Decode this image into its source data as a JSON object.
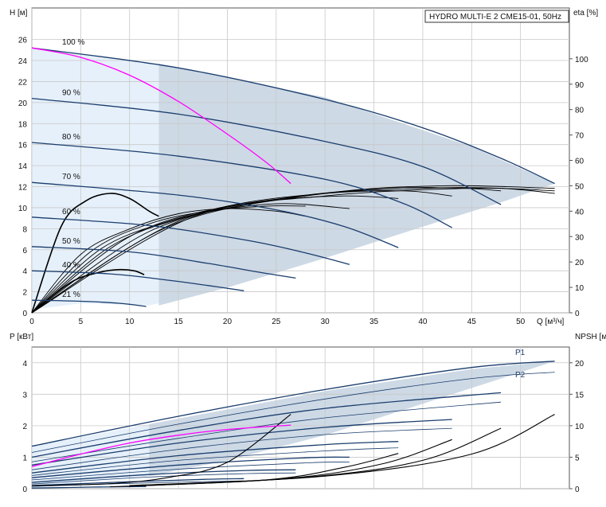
{
  "title": "HYDRO MULTI-E 2 CME15-01, 50Hz",
  "colors": {
    "envelope": "#cdd9e5",
    "envelope_light": "#e6f0fa",
    "speed_curve": "#1a3d6d",
    "duty_curve": "#ff00ff",
    "eta_curve": "#000000",
    "grid": "#c8c8c8",
    "frame": "#555555"
  },
  "chart_data": [
    {
      "type": "line",
      "title": "HYDRO MULTI-E 2 CME15-01, 50Hz",
      "xlabel": "Q [м³/ч]",
      "ylabel": "H [м]",
      "y2label": "eta [%]",
      "xlim": [
        0,
        55
      ],
      "ylim": [
        0,
        29
      ],
      "y2lim": [
        0,
        120
      ],
      "x_ticks": [
        0,
        5,
        10,
        15,
        20,
        25,
        30,
        35,
        40,
        45,
        50
      ],
      "y_ticks": [
        0,
        2,
        4,
        6,
        8,
        10,
        12,
        14,
        16,
        18,
        20,
        22,
        24,
        26
      ],
      "y2_ticks": [
        0,
        10,
        20,
        30,
        40,
        50,
        60,
        70,
        80,
        90,
        100
      ],
      "grid": true,
      "envelope": [
        [
          0,
          25.2
        ],
        [
          13,
          23.7
        ],
        [
          30,
          20.5
        ],
        [
          45,
          15.8
        ],
        [
          53.5,
          12.3
        ],
        [
          48,
          10.5
        ],
        [
          40,
          8.2
        ],
        [
          30,
          5.2
        ],
        [
          20,
          2.4
        ],
        [
          12,
          0.7
        ],
        [
          5,
          0.9
        ],
        [
          0,
          0.3
        ]
      ],
      "speed_curves": [
        {
          "name": "100 %",
          "points": [
            [
              0,
              25.2
            ],
            [
              15,
              23.3
            ],
            [
              30,
              20.3
            ],
            [
              40,
              17.6
            ],
            [
              48,
              14.7
            ],
            [
              53.5,
              12.3
            ]
          ]
        },
        {
          "name": "90 %",
          "points": [
            [
              0,
              20.4
            ],
            [
              15,
              18.9
            ],
            [
              30,
              16.3
            ],
            [
              40,
              13.9
            ],
            [
              48,
              10.3
            ]
          ]
        },
        {
          "name": "80 %",
          "points": [
            [
              0,
              16.2
            ],
            [
              15,
              14.9
            ],
            [
              30,
              12.7
            ],
            [
              38,
              10.4
            ],
            [
              43,
              8.1
            ]
          ]
        },
        {
          "name": "70 %",
          "points": [
            [
              0,
              12.4
            ],
            [
              15,
              11.2
            ],
            [
              25,
              9.8
            ],
            [
              32,
              8.2
            ],
            [
              37.5,
              6.2
            ]
          ]
        },
        {
          "name": "60 %",
          "points": [
            [
              0,
              9.1
            ],
            [
              12,
              8.3
            ],
            [
              22,
              6.9
            ],
            [
              28,
              5.7
            ],
            [
              32.5,
              4.6
            ]
          ]
        },
        {
          "name": "50 %",
          "points": [
            [
              0,
              6.3
            ],
            [
              10,
              5.8
            ],
            [
              18,
              4.7
            ],
            [
              23,
              3.9
            ],
            [
              27,
              3.3
            ]
          ]
        },
        {
          "name": "40 %",
          "points": [
            [
              0,
              4.0
            ],
            [
              8,
              3.7
            ],
            [
              14,
              3.1
            ],
            [
              18,
              2.6
            ],
            [
              21.7,
              2.1
            ]
          ]
        },
        {
          "name": "21 %",
          "points": [
            [
              0,
              1.2
            ],
            [
              5,
              1.1
            ],
            [
              9,
              0.9
            ],
            [
              11.7,
              0.6
            ]
          ]
        }
      ],
      "duty_curve": {
        "points": [
          [
            0,
            25.2
          ],
          [
            5,
            24.3
          ],
          [
            10,
            22.6
          ],
          [
            15,
            20.1
          ],
          [
            20,
            17.0
          ],
          [
            24,
            14.3
          ],
          [
            26.5,
            12.3
          ]
        ]
      },
      "eta_curves": [
        {
          "points": [
            [
              0,
              0
            ],
            [
              3,
              34
            ],
            [
              5.5,
              44
            ],
            [
              8,
              47
            ],
            [
              10,
              45
            ],
            [
              12,
              40
            ],
            [
              13,
              38
            ]
          ]
        },
        {
          "points": [
            [
              0,
              0
            ],
            [
              4,
              12
            ],
            [
              7,
              16
            ],
            [
              9,
              17
            ],
            [
              10.5,
              16.5
            ],
            [
              11.5,
              15
            ]
          ]
        },
        {
          "points": [
            [
              0,
              0
            ],
            [
              5,
              23
            ],
            [
              10,
              33
            ],
            [
              15,
              39
            ],
            [
              20,
              41
            ],
            [
              25,
              40
            ],
            [
              28,
              38
            ]
          ]
        },
        {
          "points": [
            [
              0,
              0
            ],
            [
              6,
              24
            ],
            [
              12,
              35
            ],
            [
              18,
              40
            ],
            [
              24,
              42
            ],
            [
              28,
              42
            ]
          ]
        },
        {
          "points": [
            [
              0,
              0
            ],
            [
              7,
              25
            ],
            [
              14,
              36
            ],
            [
              20,
              41
            ],
            [
              26,
              43
            ],
            [
              32.5,
              41
            ]
          ]
        },
        {
          "points": [
            [
              0,
              0
            ],
            [
              8,
              26
            ],
            [
              16,
              38
            ],
            [
              24,
              44
            ],
            [
              32,
              46
            ],
            [
              37.5,
              45
            ]
          ]
        },
        {
          "points": [
            [
              0,
              0
            ],
            [
              10,
              30
            ],
            [
              20,
              42
            ],
            [
              30,
              47
            ],
            [
              38,
              48
            ],
            [
              43,
              46
            ]
          ]
        },
        {
          "points": [
            [
              0,
              0
            ],
            [
              12,
              32
            ],
            [
              24,
              44
            ],
            [
              36,
              49
            ],
            [
              44,
              49
            ],
            [
              48,
              48
            ]
          ]
        },
        {
          "points": [
            [
              0,
              0
            ],
            [
              14,
              34
            ],
            [
              28,
              46
            ],
            [
              40,
              49
            ],
            [
              48,
              49
            ],
            [
              53.5,
              47
            ]
          ]
        },
        {
          "points": [
            [
              0,
              0
            ],
            [
              15,
              36
            ],
            [
              30,
              47
            ],
            [
              42,
              50
            ],
            [
              53.5,
              49
            ]
          ]
        },
        {
          "points": [
            [
              0,
              0
            ],
            [
              16,
              37
            ],
            [
              30,
              46
            ],
            [
              45,
              49
            ],
            [
              53.5,
              48
            ]
          ]
        }
      ],
      "labels": [
        "100 %",
        "90 %",
        "80 %",
        "70 %",
        "60 %",
        "50 %",
        "40 %",
        "21 %"
      ]
    },
    {
      "type": "line",
      "xlabel": "Q [м³/ч]",
      "ylabel": "P [кВт]",
      "y2label": "NPSH [м]",
      "xlim": [
        0,
        55
      ],
      "ylim": [
        0,
        4.5
      ],
      "y2lim": [
        0,
        22.5
      ],
      "y_ticks": [
        0,
        1,
        2,
        3,
        4
      ],
      "y2_ticks": [
        0,
        5,
        10,
        15,
        20
      ],
      "grid": true,
      "envelope": [
        [
          0,
          1.35
        ],
        [
          12,
          2.05
        ],
        [
          30,
          3.1
        ],
        [
          45,
          3.8
        ],
        [
          53.5,
          4.05
        ],
        [
          48,
          3.5
        ],
        [
          40,
          2.7
        ],
        [
          30,
          1.7
        ],
        [
          20,
          0.9
        ],
        [
          12,
          0.4
        ],
        [
          0,
          0.05
        ]
      ],
      "p1_curves": [
        {
          "name": "P1",
          "points": [
            [
              0,
              1.35
            ],
            [
              15,
              2.3
            ],
            [
              30,
              3.15
            ],
            [
              45,
              3.85
            ],
            [
              53.5,
              4.05
            ]
          ]
        },
        {
          "points": [
            [
              0,
              1.0
            ],
            [
              15,
              1.85
            ],
            [
              30,
              2.55
            ],
            [
              48,
              3.05
            ]
          ]
        },
        {
          "points": [
            [
              0,
              0.75
            ],
            [
              15,
              1.45
            ],
            [
              30,
              1.95
            ],
            [
              43,
              2.2
            ]
          ]
        },
        {
          "points": [
            [
              0,
              0.5
            ],
            [
              15,
              1.05
            ],
            [
              30,
              1.4
            ],
            [
              37.5,
              1.5
            ]
          ]
        },
        {
          "points": [
            [
              0,
              0.35
            ],
            [
              15,
              0.75
            ],
            [
              28,
              0.98
            ],
            [
              32.5,
              1.0
            ]
          ]
        },
        {
          "points": [
            [
              0,
              0.2
            ],
            [
              12,
              0.45
            ],
            [
              22,
              0.58
            ],
            [
              27,
              0.6
            ]
          ]
        },
        {
          "points": [
            [
              0,
              0.1
            ],
            [
              10,
              0.22
            ],
            [
              18,
              0.3
            ],
            [
              21.7,
              0.32
            ]
          ]
        },
        {
          "points": [
            [
              0,
              0.02
            ],
            [
              6,
              0.05
            ],
            [
              11.7,
              0.07
            ]
          ]
        }
      ],
      "p2_curves": [
        {
          "name": "P2",
          "points": [
            [
              0,
              1.15
            ],
            [
              15,
              2.05
            ],
            [
              30,
              2.85
            ],
            [
              45,
              3.5
            ],
            [
              53.5,
              3.7
            ]
          ]
        },
        {
          "points": [
            [
              0,
              0.85
            ],
            [
              15,
              1.6
            ],
            [
              30,
              2.25
            ],
            [
              48,
              2.75
            ]
          ]
        },
        {
          "points": [
            [
              0,
              0.6
            ],
            [
              15,
              1.25
            ],
            [
              30,
              1.72
            ],
            [
              43,
              1.92
            ]
          ]
        },
        {
          "points": [
            [
              0,
              0.42
            ],
            [
              15,
              0.9
            ],
            [
              30,
              1.2
            ],
            [
              37.5,
              1.3
            ]
          ]
        },
        {
          "points": [
            [
              0,
              0.28
            ],
            [
              15,
              0.62
            ],
            [
              28,
              0.82
            ],
            [
              32.5,
              0.85
            ]
          ]
        },
        {
          "points": [
            [
              0,
              0.15
            ],
            [
              12,
              0.37
            ],
            [
              22,
              0.48
            ],
            [
              27,
              0.5
            ]
          ]
        },
        {
          "points": [
            [
              0,
              0.07
            ],
            [
              10,
              0.17
            ],
            [
              21.7,
              0.25
            ]
          ]
        }
      ],
      "duty_curve": {
        "points": [
          [
            0,
            0.7
          ],
          [
            5,
            1.1
          ],
          [
            10,
            1.45
          ],
          [
            15,
            1.7
          ],
          [
            20,
            1.88
          ],
          [
            26.5,
            2.02
          ]
        ]
      },
      "npsh_curves": [
        {
          "points": [
            [
              0,
              0.5
            ],
            [
              8,
              0.8
            ],
            [
              14,
              1.8
            ],
            [
              20,
              4.2
            ],
            [
              26.5,
              11.8
            ]
          ]
        },
        {
          "points": [
            [
              10,
              0.5
            ],
            [
              30,
              2.0
            ],
            [
              45,
              5.5
            ],
            [
              53.5,
              11.8
            ]
          ]
        },
        {
          "points": [
            [
              10,
              0.4
            ],
            [
              28,
              1.8
            ],
            [
              40,
              4.5
            ],
            [
              48,
              9.6
            ]
          ]
        },
        {
          "points": [
            [
              10,
              0.4
            ],
            [
              26,
              1.6
            ],
            [
              36,
              4.0
            ],
            [
              43,
              7.8
            ]
          ]
        },
        {
          "points": [
            [
              8,
              0.3
            ],
            [
              24,
              1.4
            ],
            [
              32,
              3.4
            ],
            [
              37.5,
              5.6
            ]
          ]
        }
      ],
      "labels": [
        "P1",
        "P2"
      ]
    }
  ]
}
